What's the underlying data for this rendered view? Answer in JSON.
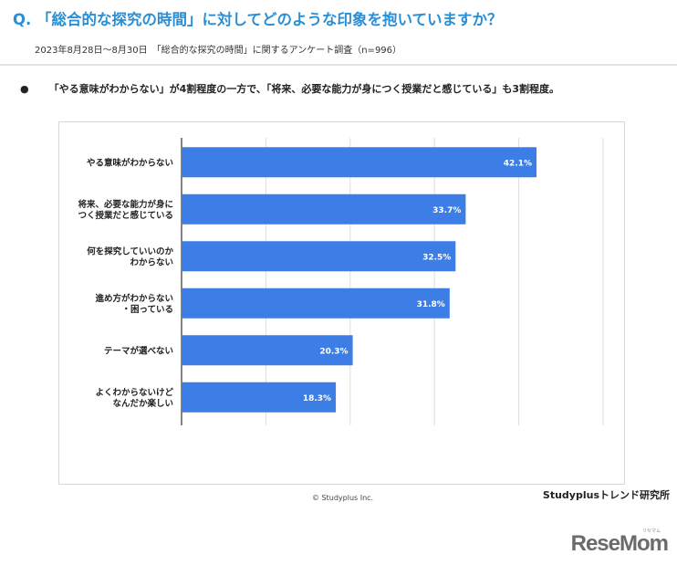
{
  "header": {
    "title": "Q. 「総合的な探究の時間」に対してどのような印象を抱いていますか？",
    "subtitle": "2023年8月28日〜8月30日　「総合的な探究の時間」に関するアンケート調査（n=996）"
  },
  "summary": {
    "bullet": "●",
    "text": "「やる意味がわからない」が4割程度の一方で、「将来、必要な能力が身につく授業だと感じている」も3割程度。"
  },
  "chart_data": {
    "type": "bar",
    "orientation": "horizontal",
    "categories": [
      [
        "やる意味がわからない"
      ],
      [
        "将来、必要な能力が身に",
        "つく授業だと感じている"
      ],
      [
        "何を探究していいのか",
        "わからない"
      ],
      [
        "進め方がわからない",
        "・困っている"
      ],
      [
        "テーマが選べない"
      ],
      [
        "よくわからないけど",
        "なんだか楽しい"
      ]
    ],
    "values": [
      42.1,
      33.7,
      32.5,
      31.8,
      20.3,
      18.3
    ],
    "value_labels": [
      "42.1%",
      "33.7%",
      "32.5%",
      "31.8%",
      "20.3%",
      "18.3%"
    ],
    "xlim": [
      0,
      50
    ],
    "grid": true,
    "bar_color": "#3d7ee6"
  },
  "footer": {
    "copyright": "© Studyplus Inc.",
    "lab": "Studyplusトレンド研究所",
    "logo": "ReseMom",
    "logo_sub": "リセマム"
  }
}
